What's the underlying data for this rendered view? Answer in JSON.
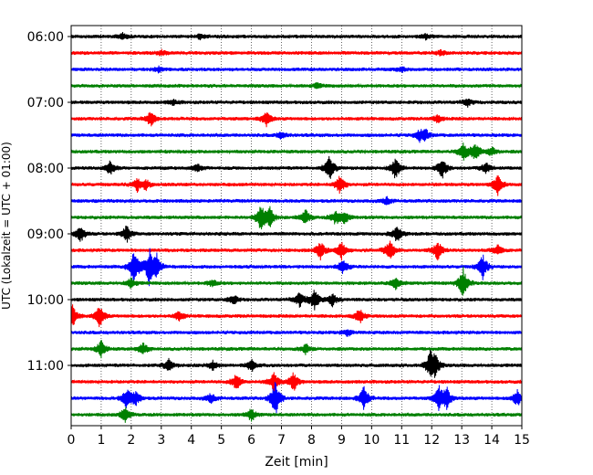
{
  "chart_data": {
    "type": "line",
    "title": "",
    "xlabel": "Zeit  [min]",
    "ylabel": "UTC (Lokalzeit = UTC + 01:00)",
    "xlim": [
      0,
      15
    ],
    "x_ticks": [
      "0",
      "1",
      "2",
      "3",
      "4",
      "5",
      "6",
      "7",
      "8",
      "9",
      "10",
      "11",
      "12",
      "13",
      "14",
      "15"
    ],
    "y_ticks": [
      "06:00",
      "07:00",
      "08:00",
      "09:00",
      "10:00",
      "11:00"
    ],
    "grid": "vertical dotted at each minute",
    "series_colors": [
      "#000000",
      "#ff0000",
      "#0000ff",
      "#008000"
    ],
    "trace_minutes": 15,
    "traces": [
      {
        "start": "06:00",
        "color": "#000000",
        "events": [
          [
            1.7,
            0.25
          ],
          [
            4.3,
            0.2
          ],
          [
            11.8,
            0.2
          ]
        ]
      },
      {
        "start": "06:15",
        "color": "#ff0000",
        "events": [
          [
            3.0,
            0.2
          ],
          [
            12.3,
            0.2
          ]
        ]
      },
      {
        "start": "06:30",
        "color": "#0000ff",
        "events": [
          [
            2.9,
            0.2
          ],
          [
            11.0,
            0.2
          ]
        ]
      },
      {
        "start": "06:45",
        "color": "#008000",
        "events": [
          [
            8.2,
            0.2
          ]
        ]
      },
      {
        "start": "07:00",
        "color": "#000000",
        "events": [
          [
            3.4,
            0.2
          ],
          [
            13.2,
            0.3
          ]
        ]
      },
      {
        "start": "07:15",
        "color": "#ff0000",
        "events": [
          [
            2.65,
            0.6
          ],
          [
            6.5,
            0.6
          ],
          [
            12.2,
            0.3
          ]
        ]
      },
      {
        "start": "07:30",
        "color": "#0000ff",
        "events": [
          [
            7.0,
            0.3
          ],
          [
            11.6,
            0.4
          ],
          [
            11.8,
            0.4
          ]
        ]
      },
      {
        "start": "07:45",
        "color": "#008000",
        "events": [
          [
            13.05,
            0.7
          ],
          [
            13.45,
            0.8
          ],
          [
            14.0,
            0.4
          ]
        ]
      },
      {
        "start": "08:00",
        "color": "#000000",
        "events": [
          [
            1.3,
            0.6
          ],
          [
            4.2,
            0.3
          ],
          [
            8.6,
            1.0
          ],
          [
            10.8,
            0.9
          ],
          [
            12.35,
            0.8
          ],
          [
            13.8,
            0.5
          ]
        ]
      },
      {
        "start": "08:15",
        "color": "#ff0000",
        "events": [
          [
            2.2,
            0.5
          ],
          [
            2.5,
            0.4
          ],
          [
            8.95,
            0.8
          ],
          [
            14.2,
            0.8
          ]
        ]
      },
      {
        "start": "08:30",
        "color": "#0000ff",
        "events": [
          [
            10.5,
            0.3
          ]
        ]
      },
      {
        "start": "08:45",
        "color": "#008000",
        "events": [
          [
            6.3,
            1.0
          ],
          [
            6.6,
            0.9
          ],
          [
            7.8,
            0.6
          ],
          [
            8.8,
            0.6
          ],
          [
            9.1,
            0.5
          ]
        ]
      },
      {
        "start": "09:00",
        "color": "#000000",
        "events": [
          [
            0.3,
            0.7
          ],
          [
            1.85,
            0.7
          ],
          [
            10.85,
            0.7
          ]
        ]
      },
      {
        "start": "09:15",
        "color": "#ff0000",
        "events": [
          [
            8.3,
            0.7
          ],
          [
            9.0,
            0.7
          ],
          [
            10.6,
            0.9
          ],
          [
            12.2,
            0.8
          ],
          [
            14.2,
            0.5
          ]
        ]
      },
      {
        "start": "09:30",
        "color": "#0000ff",
        "events": [
          [
            2.1,
            1.6
          ],
          [
            2.6,
            1.4
          ],
          [
            2.85,
            1.0
          ],
          [
            9.05,
            0.6
          ],
          [
            13.7,
            1.0
          ]
        ]
      },
      {
        "start": "09:45",
        "color": "#008000",
        "events": [
          [
            2.0,
            0.4
          ],
          [
            4.7,
            0.3
          ],
          [
            10.8,
            0.5
          ],
          [
            13.05,
            1.2
          ]
        ]
      },
      {
        "start": "10:00",
        "color": "#000000",
        "events": [
          [
            5.4,
            0.4
          ],
          [
            7.6,
            0.6
          ],
          [
            8.1,
            0.9
          ],
          [
            8.7,
            0.5
          ]
        ]
      },
      {
        "start": "10:15",
        "color": "#ff0000",
        "events": [
          [
            0.05,
            0.9
          ],
          [
            0.95,
            0.9
          ],
          [
            3.6,
            0.4
          ],
          [
            9.6,
            0.6
          ]
        ]
      },
      {
        "start": "10:30",
        "color": "#0000ff",
        "events": [
          [
            9.2,
            0.3
          ]
        ]
      },
      {
        "start": "10:45",
        "color": "#008000",
        "events": [
          [
            1.0,
            0.7
          ],
          [
            2.4,
            0.5
          ],
          [
            7.8,
            0.4
          ]
        ]
      },
      {
        "start": "11:00",
        "color": "#000000",
        "events": [
          [
            3.25,
            0.5
          ],
          [
            4.7,
            0.4
          ],
          [
            6.0,
            0.5
          ],
          [
            11.95,
            1.0
          ],
          [
            12.1,
            0.9
          ]
        ]
      },
      {
        "start": "11:15",
        "color": "#ff0000",
        "events": [
          [
            5.5,
            0.7
          ],
          [
            6.75,
            0.8
          ],
          [
            7.4,
            0.8
          ]
        ]
      },
      {
        "start": "11:30",
        "color": "#0000ff",
        "events": [
          [
            1.85,
            0.8
          ],
          [
            2.15,
            0.6
          ],
          [
            4.65,
            0.4
          ],
          [
            6.8,
            1.5
          ],
          [
            9.75,
            1.0
          ],
          [
            12.25,
            1.0
          ],
          [
            12.5,
            0.8
          ],
          [
            14.85,
            0.7
          ]
        ]
      },
      {
        "start": "11:45",
        "color": "#008000",
        "events": [
          [
            1.8,
            0.6
          ],
          [
            6.0,
            0.5
          ]
        ]
      }
    ]
  }
}
